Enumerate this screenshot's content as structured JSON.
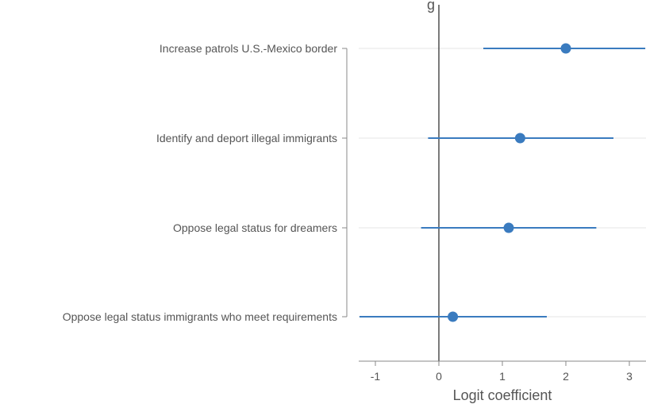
{
  "chart_data": {
    "type": "scatter",
    "subtype": "coefficient-plot",
    "title_partial": "g",
    "xlabel": "Logit coefficient",
    "ylabel": "",
    "xlim": [
      -1.25,
      3.25
    ],
    "xticks": [
      -1,
      0,
      1,
      2,
      3
    ],
    "xtick_labels": [
      "-1",
      "0",
      "1",
      "2",
      "3"
    ],
    "reference_line_x": 0,
    "grid": "horizontal-at-categories",
    "categories": [
      "Increase patrols U.S.-Mexico border",
      "Identify and deport illegal immigrants",
      "Oppose legal status for dreamers",
      "Oppose legal status immigrants who meet requirements"
    ],
    "estimates": [
      2.0,
      1.28,
      1.1,
      0.22
    ],
    "ci_low": [
      0.7,
      -0.17,
      -0.28,
      -1.25
    ],
    "ci_high": [
      3.25,
      2.75,
      2.48,
      1.7
    ],
    "colors": {
      "point": "#3a7bbf",
      "ci": "#3a7bbf",
      "grid": "#e6e6e6",
      "axis": "#888888",
      "refline": "#222222"
    }
  }
}
